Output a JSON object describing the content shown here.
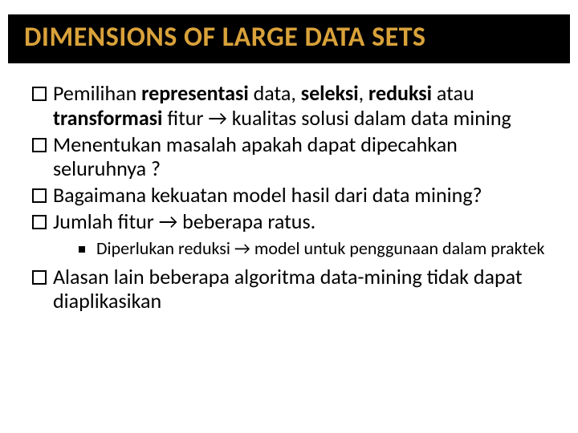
{
  "title": "DIMENSIONS OF LARGE DATA SETS",
  "title_color": "#d9a23a",
  "title_bg": "#000000",
  "title_fontsize": 34,
  "body_fontsize": 26,
  "sub_fontsize": 22,
  "bullets": {
    "b1_pre": "Pemilihan",
    "b1_bold1": " representasi",
    "b1_mid1": " data, ",
    "b1_bold2": "seleksi",
    "b1_mid2": ", ",
    "b1_bold3": "reduksi",
    "b1_mid3": " atau ",
    "b1_bold4": "transformasi",
    "b1_post": " fitur → kualitas solusi dalam data mining",
    "b2": "Menentukan masalah apakah dapat dipecahkan seluruhnya ?",
    "b3": "Bagaimana kekuatan model hasil dari data mining?",
    "b4": "Jumlah fitur → beberapa ratus.",
    "sub1": "Diperlukan reduksi → model untuk penggunaan dalam praktek",
    "b5": "Alasan lain beberapa algoritma data-mining tidak dapat diaplikasikan"
  }
}
